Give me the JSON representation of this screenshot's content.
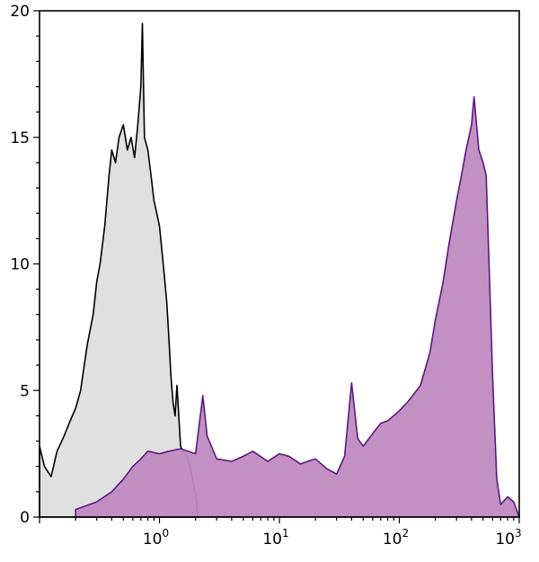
{
  "chart_data": {
    "type": "area",
    "title": "",
    "xlabel": "",
    "ylabel": "",
    "x_scale": "log",
    "xlim": [
      0.1,
      1000
    ],
    "ylim": [
      0,
      20
    ],
    "grid": false,
    "legend": "none",
    "y_ticks": [
      {
        "value": 0,
        "label": "0"
      },
      {
        "value": 5,
        "label": "5"
      },
      {
        "value": 10,
        "label": "10"
      },
      {
        "value": 15,
        "label": "15"
      },
      {
        "value": 20,
        "label": "20"
      }
    ],
    "x_ticks": [
      {
        "value": 1,
        "base": "10",
        "exp": "0"
      },
      {
        "value": 10,
        "base": "10",
        "exp": "1"
      },
      {
        "value": 100,
        "base": "10",
        "exp": "2"
      },
      {
        "value": 1000,
        "base": "10",
        "exp": "3"
      }
    ],
    "series": [
      {
        "key": "control",
        "fill": "#e0e0e0",
        "stroke": "#000000",
        "points": [
          [
            0.1,
            2.8
          ],
          [
            0.11,
            2.0
          ],
          [
            0.125,
            1.6
          ],
          [
            0.14,
            2.6
          ],
          [
            0.16,
            3.2
          ],
          [
            0.18,
            3.8
          ],
          [
            0.2,
            4.3
          ],
          [
            0.22,
            5.0
          ],
          [
            0.25,
            6.8
          ],
          [
            0.28,
            8.0
          ],
          [
            0.3,
            9.3
          ],
          [
            0.32,
            10.0
          ],
          [
            0.35,
            11.5
          ],
          [
            0.38,
            13.5
          ],
          [
            0.4,
            14.5
          ],
          [
            0.43,
            14.0
          ],
          [
            0.46,
            15.0
          ],
          [
            0.5,
            15.5
          ],
          [
            0.54,
            14.5
          ],
          [
            0.58,
            15.0
          ],
          [
            0.62,
            14.2
          ],
          [
            0.66,
            15.5
          ],
          [
            0.7,
            17.0
          ],
          [
            0.72,
            19.5
          ],
          [
            0.75,
            15.0
          ],
          [
            0.8,
            14.5
          ],
          [
            0.85,
            13.5
          ],
          [
            0.9,
            12.5
          ],
          [
            0.95,
            12.0
          ],
          [
            1.0,
            11.5
          ],
          [
            1.05,
            10.5
          ],
          [
            1.1,
            9.5
          ],
          [
            1.15,
            8.5
          ],
          [
            1.2,
            7.0
          ],
          [
            1.25,
            5.5
          ],
          [
            1.3,
            4.5
          ],
          [
            1.35,
            4.0
          ],
          [
            1.4,
            5.2
          ],
          [
            1.45,
            4.0
          ],
          [
            1.5,
            2.8
          ],
          [
            1.6,
            2.5
          ],
          [
            1.7,
            2.4
          ],
          [
            1.8,
            2.0
          ],
          [
            1.9,
            1.4
          ],
          [
            2.0,
            0.9
          ],
          [
            2.1,
            0.0
          ]
        ]
      },
      {
        "key": "stained",
        "fill": "#c08ac0",
        "stroke": "#5a1880",
        "points": [
          [
            0.2,
            0.3
          ],
          [
            0.3,
            0.6
          ],
          [
            0.4,
            1.0
          ],
          [
            0.5,
            1.5
          ],
          [
            0.6,
            2.0
          ],
          [
            0.7,
            2.3
          ],
          [
            0.8,
            2.6
          ],
          [
            1.0,
            2.5
          ],
          [
            1.2,
            2.6
          ],
          [
            1.5,
            2.7
          ],
          [
            2.0,
            2.5
          ],
          [
            2.3,
            4.8
          ],
          [
            2.5,
            3.2
          ],
          [
            3.0,
            2.3
          ],
          [
            4.0,
            2.2
          ],
          [
            5.0,
            2.4
          ],
          [
            6.0,
            2.6
          ],
          [
            8.0,
            2.2
          ],
          [
            10.0,
            2.5
          ],
          [
            12.0,
            2.4
          ],
          [
            15.0,
            2.1
          ],
          [
            20.0,
            2.3
          ],
          [
            25.0,
            1.9
          ],
          [
            30.0,
            1.7
          ],
          [
            35.0,
            2.4
          ],
          [
            40.0,
            5.3
          ],
          [
            45.0,
            3.1
          ],
          [
            50.0,
            2.8
          ],
          [
            60.0,
            3.3
          ],
          [
            70.0,
            3.7
          ],
          [
            80.0,
            3.8
          ],
          [
            100.0,
            4.2
          ],
          [
            120.0,
            4.6
          ],
          [
            150.0,
            5.2
          ],
          [
            180.0,
            6.5
          ],
          [
            200.0,
            7.8
          ],
          [
            230.0,
            9.2
          ],
          [
            260.0,
            10.8
          ],
          [
            300.0,
            12.5
          ],
          [
            330.0,
            13.5
          ],
          [
            360.0,
            14.5
          ],
          [
            400.0,
            15.5
          ],
          [
            420.0,
            16.6
          ],
          [
            460.0,
            14.5
          ],
          [
            500.0,
            14.0
          ],
          [
            530.0,
            13.5
          ],
          [
            560.0,
            10.0
          ],
          [
            600.0,
            5.5
          ],
          [
            650.0,
            1.5
          ],
          [
            700.0,
            0.5
          ],
          [
            800.0,
            0.8
          ],
          [
            900.0,
            0.6
          ],
          [
            1000.0,
            0.0
          ]
        ]
      }
    ]
  }
}
